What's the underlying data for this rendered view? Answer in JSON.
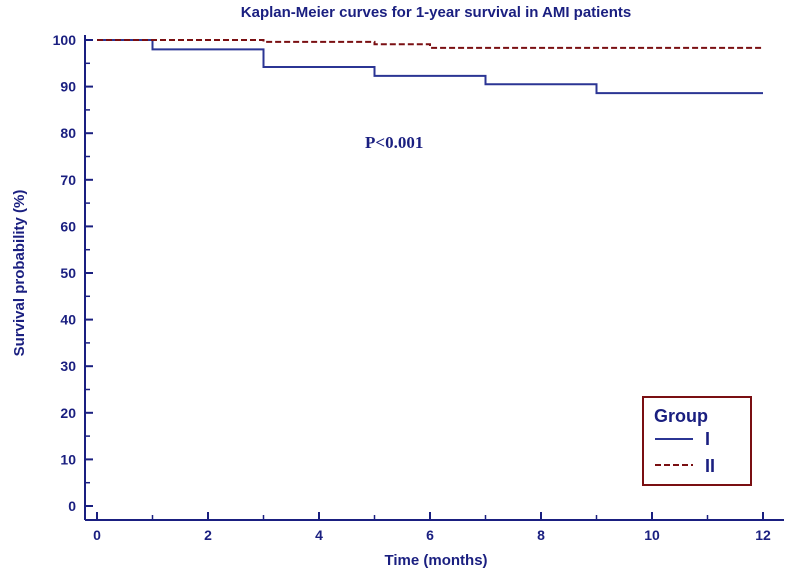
{
  "chart_data": {
    "type": "line",
    "title": "Kaplan-Meier curves for 1-year survival in AMI patients",
    "xlabel": "Time (months)",
    "ylabel": "Survival probability (%)",
    "xlim": [
      0,
      12
    ],
    "ylim": [
      0,
      100
    ],
    "x_ticks": [
      0,
      2,
      4,
      6,
      8,
      10,
      12
    ],
    "y_ticks": [
      0,
      10,
      20,
      30,
      40,
      50,
      60,
      70,
      80,
      90,
      100
    ],
    "annotation": "P<0.001",
    "legend": {
      "title": "Group",
      "position": "bottom-right"
    },
    "grid": false,
    "series": [
      {
        "name": "I",
        "style": "solid",
        "color": "#2b3594",
        "step_points": [
          [
            0,
            100
          ],
          [
            1,
            98
          ],
          [
            3,
            94.2
          ],
          [
            5,
            92.3
          ],
          [
            7,
            90.5
          ],
          [
            9,
            88.6
          ],
          [
            12,
            88.6
          ]
        ]
      },
      {
        "name": "II",
        "style": "dashed",
        "color": "#7a0f12",
        "step_points": [
          [
            0,
            100
          ],
          [
            3,
            99.6
          ],
          [
            5,
            99.1
          ],
          [
            6,
            98.3
          ],
          [
            12,
            98.3
          ]
        ]
      }
    ],
    "colors": {
      "axis": "#1a1f80",
      "text": "#1a1f80",
      "legend_border": "#7a0f12"
    }
  }
}
